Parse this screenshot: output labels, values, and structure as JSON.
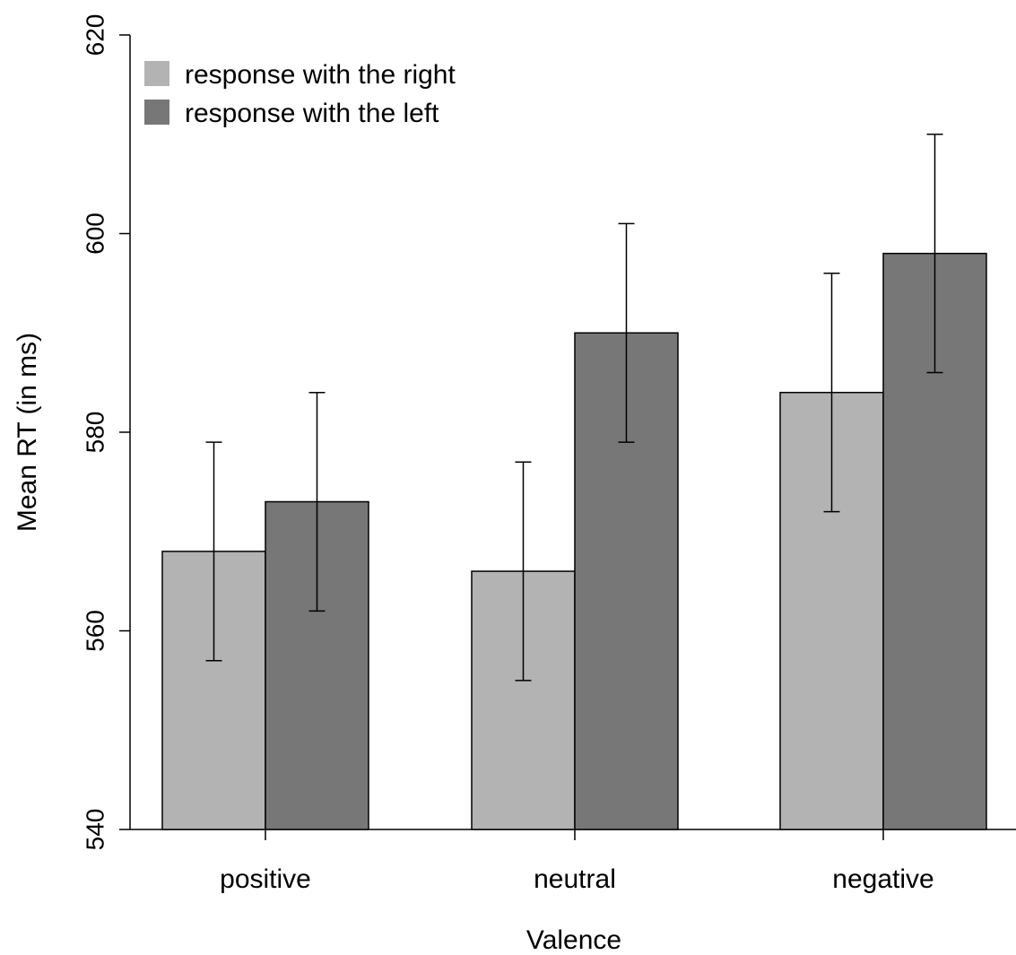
{
  "chart_data": {
    "type": "bar",
    "categories": [
      "positive",
      "neutral",
      "negative"
    ],
    "series": [
      {
        "name": "response with the right",
        "color": "#b3b3b3",
        "values": [
          568,
          566,
          584
        ],
        "error_low": [
          557,
          555,
          572
        ],
        "error_high": [
          579,
          577,
          596
        ]
      },
      {
        "name": "response with the left",
        "color": "#777777",
        "values": [
          573,
          590,
          598
        ],
        "error_low": [
          562,
          579,
          586
        ],
        "error_high": [
          584,
          601,
          610
        ]
      }
    ],
    "title": "",
    "xlabel": "Valence",
    "ylabel": "Mean RT (in ms)",
    "ylim": [
      540,
      620
    ],
    "yticks": [
      "540",
      "560",
      "580",
      "600",
      "620"
    ],
    "grid": false,
    "legend_position": "top-left",
    "error_bars": true
  }
}
